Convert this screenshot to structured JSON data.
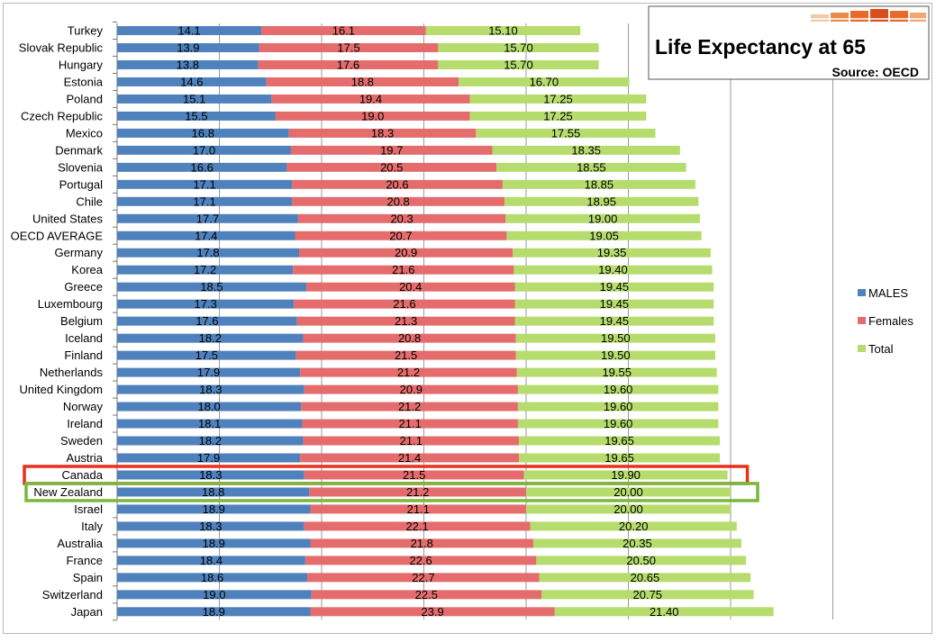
{
  "chart_data": {
    "type": "bar",
    "stacked": true,
    "orientation": "horizontal",
    "title": "Life Expectancy at 65",
    "source": "Source: OECD",
    "categories": [
      "Turkey",
      "Slovak Republic",
      "Hungary",
      "Estonia",
      "Poland",
      "Czech Republic",
      "Mexico",
      "Denmark",
      "Slovenia",
      "Portugal",
      "Chile",
      "United States",
      "OECD AVERAGE",
      "Germany",
      "Korea",
      "Greece",
      "Luxembourg",
      "Belgium",
      "Iceland",
      "Finland",
      "Netherlands",
      "United Kingdom",
      "Norway",
      "Ireland",
      "Sweden",
      "Austria",
      "Canada",
      "New Zealand",
      "Israel",
      "Italy",
      "Australia",
      "France",
      "Spain",
      "Switzerland",
      "Japan"
    ],
    "series": [
      {
        "name": "MALES",
        "color": "#4f81bd",
        "values": [
          14.1,
          13.9,
          13.8,
          14.6,
          15.1,
          15.5,
          16.8,
          17.0,
          16.6,
          17.1,
          17.1,
          17.7,
          17.4,
          17.8,
          17.2,
          18.5,
          17.3,
          17.6,
          18.2,
          17.5,
          17.9,
          18.3,
          18.0,
          18.1,
          18.2,
          17.9,
          18.3,
          18.8,
          18.9,
          18.3,
          18.9,
          18.4,
          18.6,
          19.0,
          18.9
        ],
        "labels": [
          "14.1",
          "13.9",
          "13.8",
          "14.6",
          "15.1",
          "15.5",
          "16.8",
          "17.0",
          "16.6",
          "17.1",
          "17.1",
          "17.7",
          "17.4",
          "17.8",
          "17.2",
          "18.5",
          "17.3",
          "17.6",
          "18.2",
          "17.5",
          "17.9",
          "18.3",
          "18.0",
          "18.1",
          "18.2",
          "17.9",
          "18.3",
          "18.8",
          "18.9",
          "18.3",
          "18.9",
          "18.4",
          "18.6",
          "19.0",
          "18.9"
        ]
      },
      {
        "name": "Females",
        "color": "#e46c6c",
        "values": [
          16.1,
          17.5,
          17.6,
          18.8,
          19.4,
          19.0,
          18.3,
          19.7,
          20.5,
          20.6,
          20.8,
          20.3,
          20.7,
          20.9,
          21.6,
          20.4,
          21.6,
          21.3,
          20.8,
          21.5,
          21.2,
          20.9,
          21.2,
          21.1,
          21.1,
          21.4,
          21.5,
          21.2,
          21.1,
          22.1,
          21.8,
          22.6,
          22.7,
          22.5,
          23.9
        ],
        "labels": [
          "16.1",
          "17.5",
          "17.6",
          "18.8",
          "19.4",
          "19.0",
          "18.3",
          "19.7",
          "20.5",
          "20.6",
          "20.8",
          "20.3",
          "20.7",
          "20.9",
          "21.6",
          "20.4",
          "21.6",
          "21.3",
          "20.8",
          "21.5",
          "21.2",
          "20.9",
          "21.2",
          "21.1",
          "21.1",
          "21.4",
          "21.5",
          "21.2",
          "21.1",
          "22.1",
          "21.8",
          "22.6",
          "22.7",
          "22.5",
          "23.9"
        ]
      },
      {
        "name": "Total",
        "color": "#b5dc6c",
        "values": [
          15.1,
          15.7,
          15.7,
          16.7,
          17.25,
          17.25,
          17.55,
          18.35,
          18.55,
          18.85,
          18.95,
          19.0,
          19.05,
          19.35,
          19.4,
          19.45,
          19.45,
          19.45,
          19.5,
          19.5,
          19.55,
          19.6,
          19.6,
          19.6,
          19.65,
          19.65,
          19.9,
          20.0,
          20.0,
          20.2,
          20.35,
          20.5,
          20.65,
          20.75,
          21.4
        ],
        "labels": [
          "15.10",
          "15.70",
          "15.70",
          "16.70",
          "17.25",
          "17.25",
          "17.55",
          "18.35",
          "18.55",
          "18.85",
          "18.95",
          "19.00",
          "19.05",
          "19.35",
          "19.40",
          "19.45",
          "19.45",
          "19.45",
          "19.50",
          "19.50",
          "19.55",
          "19.60",
          "19.60",
          "19.60",
          "19.65",
          "19.65",
          "19.90",
          "20.00",
          "20.00",
          "20.20",
          "20.35",
          "20.50",
          "20.65",
          "20.75",
          "21.40"
        ]
      }
    ],
    "xlim": [
      0,
      70
    ],
    "grid": true,
    "legend_position": "right",
    "highlights": [
      {
        "category": "Canada",
        "color": "#e8301a"
      },
      {
        "category": "New Zealand",
        "color": "#79b83a"
      }
    ]
  }
}
